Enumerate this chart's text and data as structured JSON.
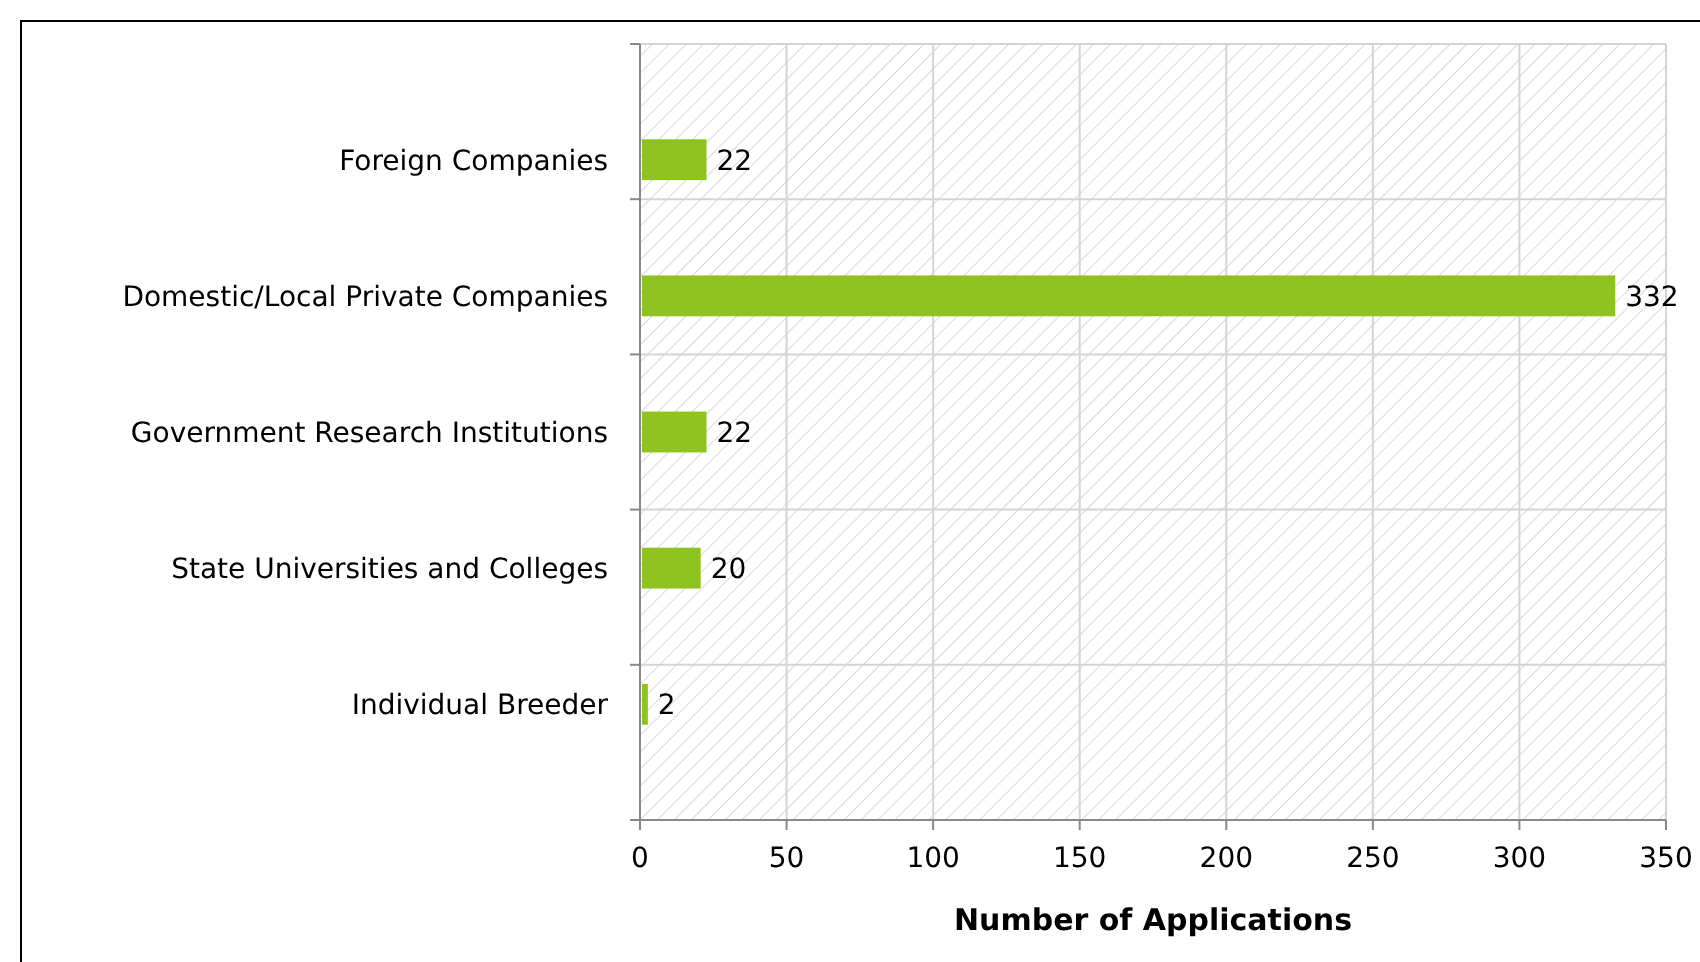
{
  "chart_data": {
    "type": "bar",
    "orientation": "horizontal",
    "categories": [
      "Foreign Companies",
      "Domestic/Local Private Companies",
      "Government Research Institutions",
      "State Universities and Colleges",
      "Individual Breeder"
    ],
    "values": [
      22,
      332,
      22,
      20,
      2
    ],
    "color": "#8dc21f",
    "xlim": [
      0,
      350
    ],
    "xticks": [
      0,
      50,
      100,
      150,
      200,
      250,
      300,
      350
    ],
    "xlabel": "Number of Applications",
    "grid": true,
    "data_labels": true
  }
}
